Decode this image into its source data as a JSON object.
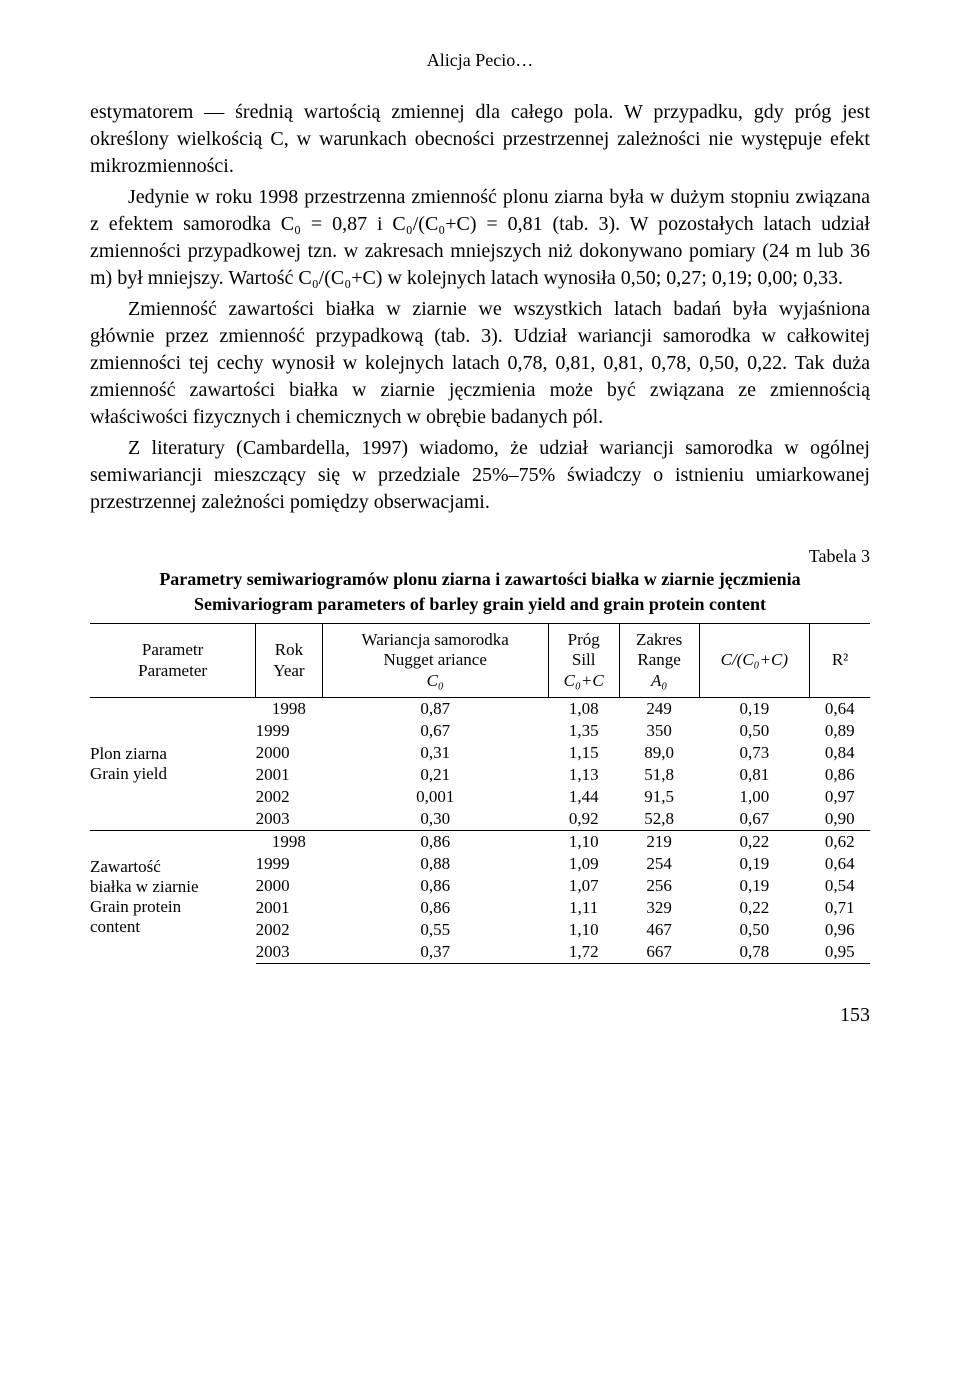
{
  "header": "Alicja Pecio…",
  "paragraphs": [
    "estymatorem — średnią wartością zmiennej dla całego pola. W przypadku, gdy próg jest określony wielkością C, w warunkach obecności przestrzennej zależności nie występuje efekt mikrozmienności.",
    "Jedynie w roku 1998 przestrzenna zmienność plonu ziarna była w dużym stopniu związana z efektem samorodka C₀ = 0,87 i C₀/(C₀+C) = 0,81 (tab. 3). W pozostałych latach udział zmienności przypadkowej tzn. w zakresach mniejszych niż dokonywano pomiary (24 m lub 36 m) był mniejszy. Wartość C₀/(C₀+C) w kolejnych latach wynosiła 0,50; 0,27; 0,19; 0,00; 0,33.",
    "Zmienność zawartości białka w ziarnie we wszystkich latach badań była wyjaśniona głównie przez zmienność przypadkową (tab. 3). Udział wariancji samorodka w całkowitej zmienności tej cechy wynosił w kolejnych latach 0,78, 0,81, 0,81, 0,78, 0,50, 0,22. Tak duża zmienność zawartości białka w ziarnie jęczmienia może być związana ze zmiennością właściwości fizycznych i chemicznych w obrębie badanych pól.",
    "Z literatury (Cambardella, 1997) wiadomo, że udział wariancji samorodka w ogólnej semiwariancji mieszczący się w przedziale 25%–75% świadczy o istnieniu umiarkowanej przestrzennej zależności pomiędzy obserwacjami."
  ],
  "table": {
    "label": "Tabela 3",
    "title_pl": "Parametry semiwariogramów plonu ziarna i zawartości białka w ziarnie jęczmienia",
    "title_en": "Semivariogram parameters of barley grain yield and grain protein content",
    "columns": [
      {
        "pl": "Parametr",
        "en": "Parameter"
      },
      {
        "pl": "Rok",
        "en": "Year"
      },
      {
        "pl": "Wariancja samorodka",
        "en": "Nugget ariance",
        "sub": "C₀"
      },
      {
        "pl": "Próg",
        "en": "Sill",
        "sub": "C₀+C"
      },
      {
        "pl": "Zakres",
        "en": "Range",
        "sub": "A₀"
      },
      {
        "pl": "C/(C₀+C)",
        "en": ""
      },
      {
        "pl": "R²",
        "en": ""
      }
    ],
    "groups": [
      {
        "param_pl": "Plon ziarna",
        "param_en": "Grain yield",
        "rows": [
          {
            "year": "1998",
            "c0": "0,87",
            "sill": "1,08",
            "range": "249",
            "ratio": "0,19",
            "r2": "0,64"
          },
          {
            "year": "1999",
            "c0": "0,67",
            "sill": "1,35",
            "range": "350",
            "ratio": "0,50",
            "r2": "0,89"
          },
          {
            "year": "2000",
            "c0": "0,31",
            "sill": "1,15",
            "range": "89,0",
            "ratio": "0,73",
            "r2": "0,84"
          },
          {
            "year": "2001",
            "c0": "0,21",
            "sill": "1,13",
            "range": "51,8",
            "ratio": "0,81",
            "r2": "0,86"
          },
          {
            "year": "2002",
            "c0": "0,001",
            "sill": "1,44",
            "range": "91,5",
            "ratio": "1,00",
            "r2": "0,97"
          },
          {
            "year": "2003",
            "c0": "0,30",
            "sill": "0,92",
            "range": "52,8",
            "ratio": "0,67",
            "r2": "0,90"
          }
        ]
      },
      {
        "param_pl": "Zawartość białka w ziarnie",
        "param_en": "Grain protein content",
        "rows": [
          {
            "year": "1998",
            "c0": "0,86",
            "sill": "1,10",
            "range": "219",
            "ratio": "0,22",
            "r2": "0,62"
          },
          {
            "year": "1999",
            "c0": "0,88",
            "sill": "1,09",
            "range": "254",
            "ratio": "0,19",
            "r2": "0,64"
          },
          {
            "year": "2000",
            "c0": "0,86",
            "sill": "1,07",
            "range": "256",
            "ratio": "0,19",
            "r2": "0,54"
          },
          {
            "year": "2001",
            "c0": "0,86",
            "sill": "1,11",
            "range": "329",
            "ratio": "0,22",
            "r2": "0,71"
          },
          {
            "year": "2002",
            "c0": "0,55",
            "sill": "1,10",
            "range": "467",
            "ratio": "0,50",
            "r2": "0,96"
          },
          {
            "year": "2003",
            "c0": "0,37",
            "sill": "1,72",
            "range": "667",
            "ratio": "0,78",
            "r2": "0,95"
          }
        ]
      }
    ]
  },
  "page_number": "153"
}
